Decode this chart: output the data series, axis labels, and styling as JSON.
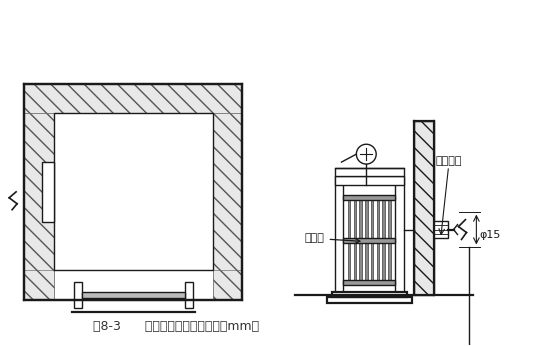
{
  "bg_color": "#ffffff",
  "line_color": "#1a1a1a",
  "caption": "图8-3      电梯井口防护门（单位：mm）",
  "label_femen": "筱棚门",
  "label_bolt": "膨胀螺栓",
  "label_phi": "φ15",
  "figsize": [
    5.52,
    3.46
  ],
  "dpi": 100
}
